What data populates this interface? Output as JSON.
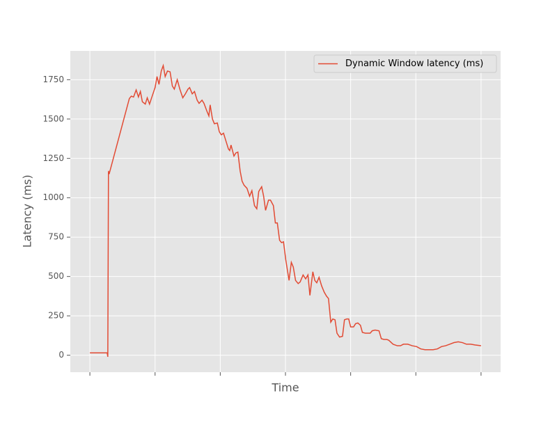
{
  "chart_data": {
    "type": "line",
    "x_label": "Time",
    "y_label": "Latency (ms)",
    "xlim": [
      -6,
      126
    ],
    "xticks": [
      0,
      20,
      40,
      60,
      80,
      100,
      120
    ],
    "ylim": [
      -108,
      1933
    ],
    "yticks": [
      0,
      250,
      500,
      750,
      1000,
      1250,
      1500,
      1750
    ],
    "grid": true,
    "legend": "upper-right",
    "x": [
      0,
      5.3,
      5.5,
      5.7,
      5.9,
      12.1,
      12.7,
      13.4,
      14.2,
      14.9,
      15.5,
      16.1,
      17.0,
      17.6,
      18.3,
      19.1,
      20.0,
      20.6,
      21.2,
      21.9,
      22.5,
      23.1,
      23.8,
      24.6,
      25.3,
      25.9,
      26.8,
      27.6,
      28.5,
      29.3,
      30.1,
      30.6,
      31.4,
      32.1,
      32.9,
      33.5,
      34.4,
      35.0,
      35.9,
      36.5,
      36.9,
      37.6,
      38.2,
      39.1,
      39.7,
      40.3,
      41.0,
      41.6,
      42.5,
      42.9,
      43.3,
      44.2,
      44.8,
      45.4,
      46.1,
      46.7,
      47.3,
      48.2,
      49.0,
      49.7,
      50.5,
      51.2,
      51.8,
      52.7,
      53.3,
      53.9,
      54.8,
      55.4,
      56.3,
      56.9,
      57.5,
      58.2,
      58.8,
      59.4,
      60.1,
      61.1,
      61.8,
      62.4,
      63.1,
      63.9,
      64.5,
      65.4,
      66.2,
      66.9,
      67.5,
      68.4,
      69.0,
      69.6,
      70.3,
      71.1,
      71.9,
      72.6,
      73.2,
      73.9,
      74.5,
      75.2,
      75.8,
      76.6,
      77.5,
      78.1,
      78.8,
      79.4,
      80.0,
      80.9,
      81.5,
      82.2,
      83.0,
      83.6,
      84.5,
      86.0,
      86.6,
      87.5,
      88.7,
      89.4,
      90.2,
      91.1,
      91.7,
      93.0,
      94.3,
      95.3,
      96.2,
      97.5,
      98.9,
      100.2,
      101.5,
      102.8,
      104.0,
      105.3,
      106.6,
      107.9,
      109.1,
      110.4,
      111.7,
      113.0,
      114.3,
      115.5,
      116.8,
      118.1,
      120
    ],
    "series": [
      {
        "name": "Dynamic Window latency (ms)",
        "color": "#e24a33",
        "values": [
          15,
          15,
          -10,
          1170,
          1150,
          1630,
          1645,
          1640,
          1685,
          1640,
          1675,
          1610,
          1595,
          1635,
          1595,
          1645,
          1700,
          1770,
          1720,
          1805,
          1840,
          1770,
          1805,
          1800,
          1710,
          1690,
          1750,
          1690,
          1635,
          1660,
          1690,
          1700,
          1660,
          1675,
          1620,
          1600,
          1620,
          1600,
          1550,
          1520,
          1590,
          1500,
          1470,
          1475,
          1420,
          1400,
          1410,
          1370,
          1310,
          1300,
          1335,
          1265,
          1285,
          1290,
          1170,
          1105,
          1080,
          1060,
          1010,
          1045,
          950,
          930,
          1040,
          1070,
          1010,
          920,
          985,
          985,
          950,
          840,
          840,
          730,
          715,
          720,
          605,
          475,
          590,
          560,
          475,
          455,
          465,
          510,
          485,
          510,
          380,
          530,
          475,
          460,
          495,
          440,
          400,
          375,
          360,
          210,
          230,
          225,
          140,
          115,
          120,
          225,
          230,
          230,
          180,
          180,
          200,
          205,
          190,
          145,
          140,
          140,
          155,
          160,
          155,
          105,
          100,
          100,
          95,
          70,
          60,
          60,
          70,
          70,
          60,
          55,
          40,
          35,
          35,
          35,
          40,
          55,
          60,
          70,
          80,
          85,
          80,
          70,
          70,
          65,
          60
        ]
      }
    ]
  }
}
